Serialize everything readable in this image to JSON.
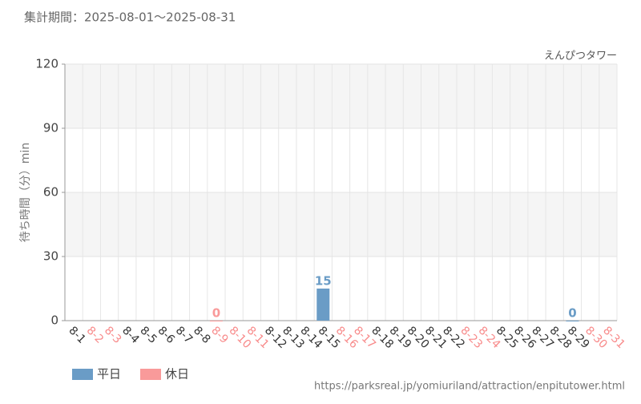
{
  "chart_data": {
    "type": "bar",
    "title": "集計期間：2025-08-01～2025-08-31",
    "subtitle": "えんぴつタワー",
    "y_label": "待ち時間（分）min",
    "source": "https://parksreal.jp/yomiuriland/attraction/enpitutower.html",
    "categories": [
      "8-1",
      "8-2",
      "8-3",
      "8-4",
      "8-5",
      "8-6",
      "8-7",
      "8-8",
      "8-9",
      "8-10",
      "8-11",
      "8-12",
      "8-13",
      "8-14",
      "8-15",
      "8-16",
      "8-17",
      "8-18",
      "8-19",
      "8-20",
      "8-21",
      "8-22",
      "8-23",
      "8-24",
      "8-25",
      "8-26",
      "8-27",
      "8-28",
      "8-29",
      "8-30",
      "8-31"
    ],
    "category_colors": [
      "#333333",
      "#f88a8a",
      "#f88a8a",
      "#333333",
      "#333333",
      "#333333",
      "#333333",
      "#333333",
      "#f88a8a",
      "#f88a8a",
      "#f88a8a",
      "#333333",
      "#333333",
      "#333333",
      "#333333",
      "#f88a8a",
      "#f88a8a",
      "#333333",
      "#333333",
      "#333333",
      "#333333",
      "#333333",
      "#f88a8a",
      "#f88a8a",
      "#333333",
      "#333333",
      "#333333",
      "#333333",
      "#333333",
      "#f88a8a",
      "#f88a8a"
    ],
    "series": [
      {
        "name": "平日",
        "color": "#6a9cc6",
        "values": [
          null,
          null,
          null,
          null,
          null,
          null,
          null,
          null,
          null,
          null,
          null,
          null,
          null,
          null,
          15,
          null,
          null,
          null,
          null,
          null,
          null,
          null,
          null,
          null,
          null,
          null,
          null,
          null,
          0,
          null,
          null
        ]
      },
      {
        "name": "休日",
        "color": "#f99a9a",
        "values": [
          null,
          null,
          null,
          null,
          null,
          null,
          null,
          null,
          0,
          null,
          null,
          null,
          null,
          null,
          null,
          null,
          null,
          null,
          null,
          null,
          null,
          null,
          null,
          null,
          null,
          null,
          null,
          null,
          null,
          null,
          null
        ]
      }
    ],
    "ylim": [
      0,
      120
    ],
    "yticks": [
      0,
      30,
      60,
      90,
      120
    ],
    "grid": true,
    "legend": "bottom-left"
  }
}
